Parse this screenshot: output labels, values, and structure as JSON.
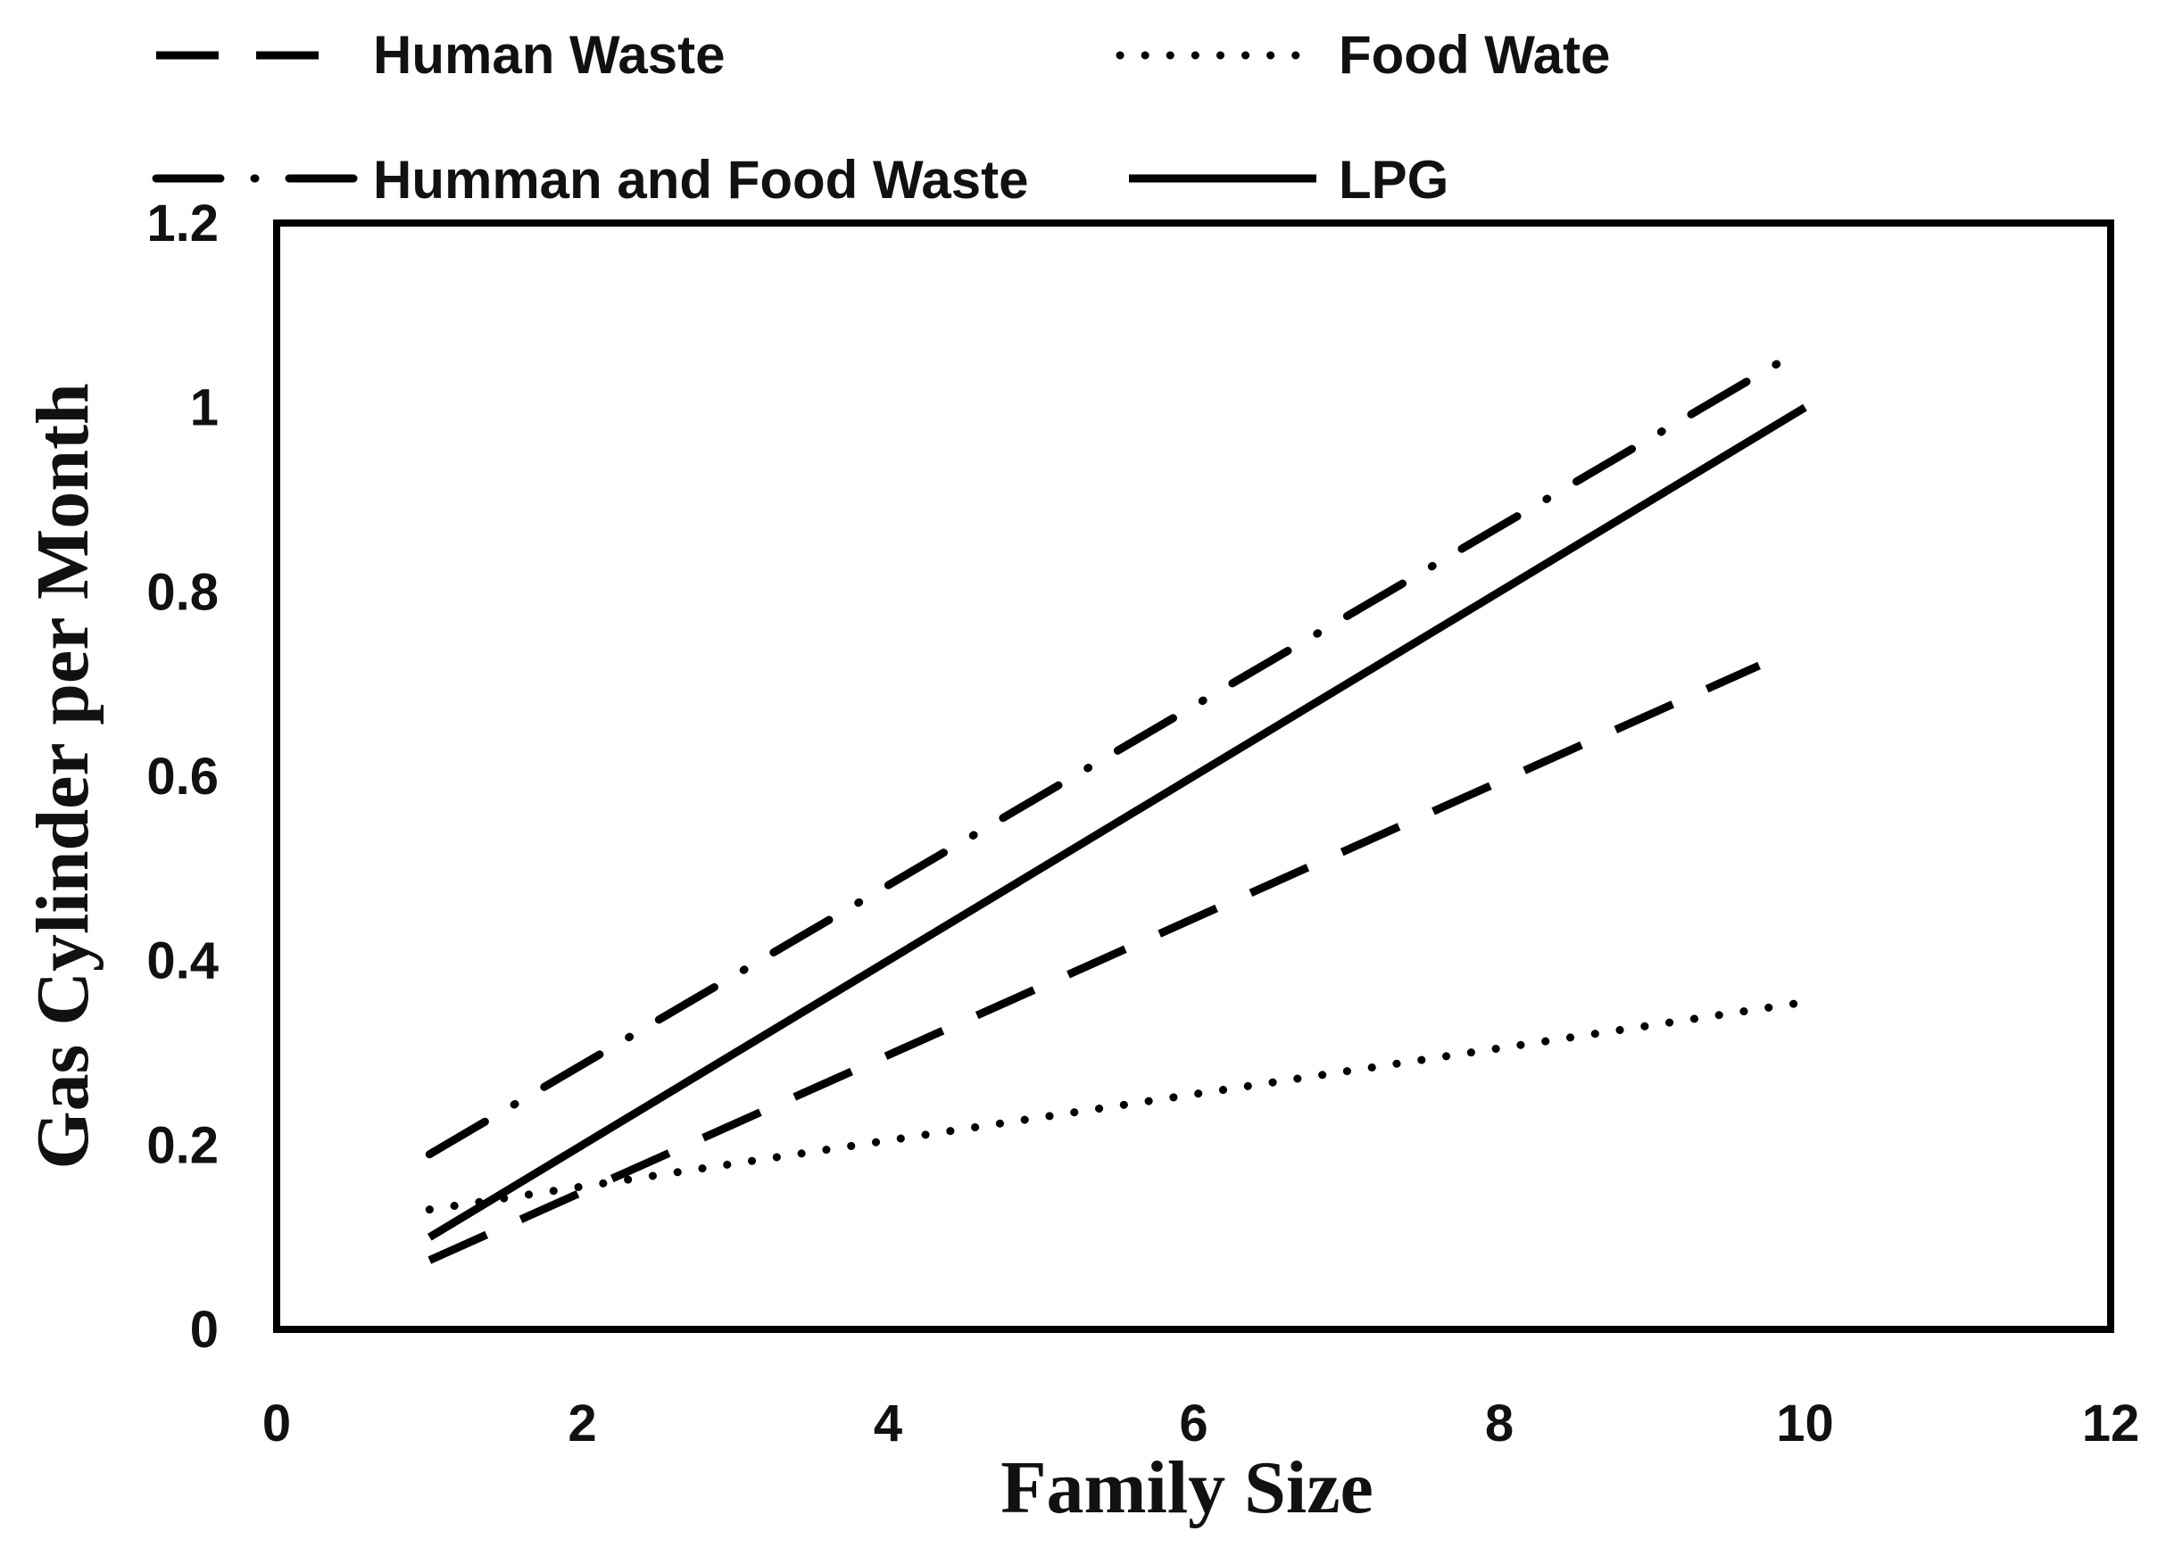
{
  "chart_data": {
    "type": "line",
    "title": "",
    "xlabel": "Family Size",
    "ylabel": "Gas Cylinder per Month",
    "xlim": [
      0,
      12
    ],
    "ylim": [
      0,
      1.2
    ],
    "x_ticks": [
      "0",
      "2",
      "4",
      "6",
      "8",
      "10",
      "12"
    ],
    "y_ticks": [
      "0",
      "0.2",
      "0.4",
      "0.6",
      "0.8",
      "1",
      "1.2"
    ],
    "x_tick_values": [
      0,
      2,
      4,
      6,
      8,
      10,
      12
    ],
    "y_tick_values": [
      0,
      0.2,
      0.4,
      0.6,
      0.8,
      1.0,
      1.2
    ],
    "grid": false,
    "legend_position": "top",
    "series": [
      {
        "name": "Human Waste",
        "style": "dashed",
        "x": [
          1,
          9.7
        ],
        "y": [
          0.075,
          0.72
        ]
      },
      {
        "name": "Food Wate",
        "style": "dotted",
        "x": [
          1,
          10
        ],
        "y": [
          0.13,
          0.355
        ]
      },
      {
        "name": "Humman and Food Waste",
        "style": "dash-dot",
        "x": [
          1,
          10
        ],
        "y": [
          0.19,
          1.065
        ]
      },
      {
        "name": "LPG",
        "style": "solid",
        "x": [
          1,
          10
        ],
        "y": [
          0.1,
          1.0
        ]
      }
    ]
  }
}
